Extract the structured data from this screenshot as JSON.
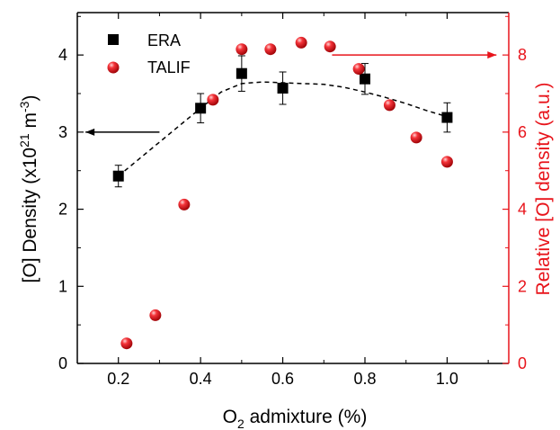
{
  "chart_data": {
    "type": "scatter",
    "xlabel": {
      "main": "O",
      "sub": "2",
      "rest": " admixture (%)"
    },
    "ylabel_left": {
      "main": "[O] Density (x10",
      "sup1": "21",
      "mid": " m",
      "sup2": "-3",
      "end": ")"
    },
    "ylabel_right": "Relative [O] density (a.u.)",
    "xlim": [
      0.1,
      1.15
    ],
    "ylim_left": [
      0,
      4.55
    ],
    "ylim_right": [
      0,
      9.1
    ],
    "x_ticks": [
      "0.2",
      "0.4",
      "0.6",
      "0.8",
      "1.0"
    ],
    "y_left_ticks": [
      "0",
      "1",
      "2",
      "3",
      "4"
    ],
    "y_right_ticks": [
      "0",
      "2",
      "4",
      "6",
      "8"
    ],
    "series": [
      {
        "name": "ERA",
        "axis": "left",
        "marker": "square",
        "color": "#000000",
        "x": [
          0.2,
          0.4,
          0.5,
          0.6,
          0.8,
          1.0
        ],
        "y": [
          2.43,
          3.31,
          3.76,
          3.57,
          3.69,
          3.19
        ],
        "err": [
          0.14,
          0.19,
          0.23,
          0.21,
          0.2,
          0.19
        ]
      },
      {
        "name": "TALIF",
        "axis": "right",
        "marker": "circle",
        "color": "#e8141b",
        "x": [
          0.22,
          0.29,
          0.36,
          0.43,
          0.5,
          0.57,
          0.645,
          0.715,
          0.785,
          0.86,
          0.925,
          1.0
        ],
        "y": [
          0.52,
          1.25,
          4.12,
          6.84,
          8.15,
          8.15,
          8.32,
          8.22,
          7.64,
          6.7,
          5.86,
          5.23
        ]
      }
    ],
    "fit_curve": {
      "style": "dashed",
      "color": "#000000",
      "axis": "left",
      "x": [
        0.2,
        0.3,
        0.4,
        0.45,
        0.5,
        0.55,
        0.6,
        0.65,
        0.7,
        0.75,
        0.8,
        0.85,
        0.9,
        0.95,
        1.0
      ],
      "y": [
        2.43,
        2.87,
        3.31,
        3.52,
        3.63,
        3.65,
        3.64,
        3.63,
        3.62,
        3.58,
        3.52,
        3.45,
        3.37,
        3.28,
        3.2
      ]
    },
    "arrows": [
      {
        "direction": "left",
        "color": "#000000",
        "axis": "left",
        "from_x": 0.3,
        "to_x": 0.12,
        "y": 3.0
      },
      {
        "direction": "right",
        "color": "#e8141b",
        "axis": "right",
        "from_x": 0.72,
        "to_x": 1.12,
        "y": 8.0
      }
    ],
    "legend_position": "top-left",
    "grid": false,
    "colors": {
      "left_axis": "#000000",
      "right_axis": "#e8141b"
    }
  }
}
